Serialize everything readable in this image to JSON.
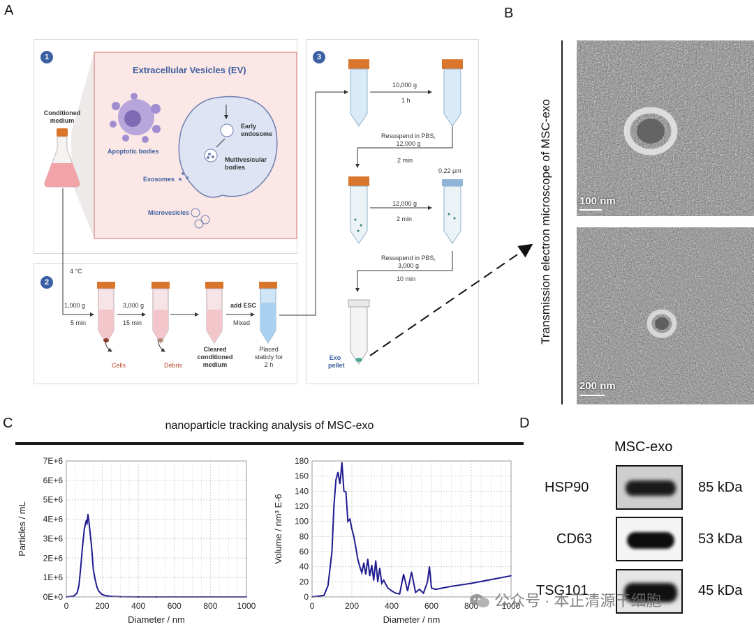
{
  "figure": {
    "panel_labels": {
      "a": "A",
      "b": "B",
      "c": "C",
      "d": "D"
    },
    "step_numbers": [
      "1",
      "2",
      "3"
    ]
  },
  "panelA": {
    "ev_title": "Extracellular Vesicles (EV)",
    "conditioned_medium": [
      "Conditioned",
      "medium"
    ],
    "apoptotic_bodies": "Apoptotic bodies",
    "early_endosome": [
      "Early",
      "endosome"
    ],
    "multivesicular_bodies": [
      "Multivesicular",
      "bodies"
    ],
    "exosomes": "Exosomes",
    "microvesicles": "Microvesicles",
    "temp": "4 °C",
    "spin1": {
      "g": "1,000 g",
      "t": "5 min"
    },
    "spin2": {
      "g": "3,000 g",
      "t": "15 min"
    },
    "add": {
      "label": "add ESC",
      "sub": "Mixed"
    },
    "cells": "Cells",
    "debris": "Debris",
    "cleared": [
      "Cleared",
      "conditioned",
      "medium"
    ],
    "placed": [
      "Placed",
      "staticly for",
      "2 h"
    ],
    "spin3": {
      "g": "10,000 g",
      "t": "1 h"
    },
    "resuspend1": [
      "Resuspend in PBS,",
      "12,000 g"
    ],
    "resuspend1_t": "2 min",
    "filter": "0.22 μm",
    "spin4": {
      "g": "12,000 g",
      "t": "2 min"
    },
    "resuspend2": [
      "Resuspend in PBS,",
      "3,000 g"
    ],
    "resuspend2_t": "10 min",
    "exo_pellet": [
      "Exo",
      "pellet"
    ]
  },
  "panelB": {
    "side_title": "Transmission electron microscope of MSC-exo",
    "scale1": "100 nm",
    "scale2": "200 nm"
  },
  "panelC": {
    "title": "nanoparticle tracking analysis of MSC-exo"
  },
  "panelD": {
    "header": "MSC-exo",
    "rows": [
      {
        "protein": "HSP90",
        "size": "85 kDa"
      },
      {
        "protein": "CD63",
        "size": "53 kDa"
      },
      {
        "protein": "TSG101",
        "size": "45 kDa"
      }
    ]
  },
  "watermark": "公众号 · 本正清源干细胞",
  "chart_data": [
    {
      "type": "line",
      "title": "",
      "xlabel": "Diameter / nm",
      "ylabel": "Particles / mL",
      "xlim": [
        0,
        1000
      ],
      "ylim": [
        0,
        7000000
      ],
      "xticks": [
        "0",
        "200",
        "400",
        "600",
        "800",
        "1000"
      ],
      "yticks": [
        "0E+0",
        "1E+6",
        "2E+6",
        "3E+6",
        "4E+6",
        "5E+6",
        "6E+6",
        "7E+6"
      ],
      "color": "#1f1a8f",
      "x": [
        0,
        40,
        60,
        70,
        80,
        90,
        100,
        110,
        115,
        120,
        125,
        130,
        140,
        150,
        160,
        170,
        180,
        190,
        200,
        220,
        250,
        300,
        400,
        500,
        1000
      ],
      "y": [
        0,
        40000,
        200000,
        600000,
        1500000,
        2600000,
        3500000,
        3900000,
        3800000,
        4250000,
        3900000,
        3500000,
        2600000,
        1400000,
        900000,
        500000,
        300000,
        200000,
        120000,
        60000,
        30000,
        10000,
        0,
        0,
        0
      ]
    },
    {
      "type": "line",
      "title": "",
      "xlabel": "Diameter / nm",
      "ylabel": "Volume / nm³ E-6",
      "xlim": [
        0,
        1000
      ],
      "ylim": [
        0,
        180
      ],
      "xticks": [
        "0",
        "200",
        "400",
        "600",
        "800",
        "1000"
      ],
      "yticks": [
        "0",
        "20",
        "40",
        "60",
        "80",
        "100",
        "120",
        "140",
        "160",
        "180"
      ],
      "color": "#1f1a8f",
      "x": [
        0,
        60,
        80,
        100,
        110,
        120,
        130,
        140,
        150,
        160,
        170,
        180,
        190,
        200,
        210,
        220,
        230,
        240,
        250,
        260,
        270,
        280,
        290,
        300,
        310,
        320,
        330,
        340,
        350,
        360,
        380,
        400,
        420,
        440,
        460,
        480,
        500,
        520,
        540,
        560,
        580,
        590,
        600,
        620,
        700,
        800,
        900,
        1000
      ],
      "y": [
        0,
        2,
        15,
        60,
        120,
        155,
        165,
        150,
        178,
        140,
        139,
        100,
        103,
        90,
        80,
        65,
        50,
        40,
        32,
        45,
        30,
        50,
        28,
        42,
        22,
        48,
        20,
        38,
        18,
        22,
        12,
        8,
        5,
        4,
        30,
        8,
        33,
        6,
        10,
        5,
        20,
        40,
        12,
        10,
        14,
        18,
        23,
        28
      ]
    }
  ]
}
